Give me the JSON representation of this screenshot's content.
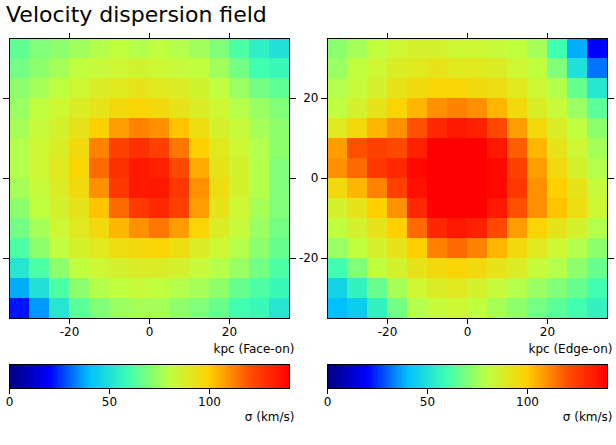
{
  "title": "Velocity dispersion field",
  "chart_data": [
    {
      "type": "heatmap",
      "xlabel": "kpc (Face-on)",
      "xlim": [
        -35,
        35
      ],
      "xticks": [
        -20,
        0,
        20
      ],
      "ylim": [
        -35,
        35
      ],
      "yticks": [
        -20,
        0,
        20
      ],
      "tick_labels": "x",
      "cells": [
        [
          65,
          70,
          72,
          75,
          78,
          80,
          78,
          80,
          78,
          75,
          70,
          62,
          55,
          50
        ],
        [
          68,
          72,
          76,
          80,
          82,
          84,
          85,
          84,
          82,
          80,
          75,
          68,
          60,
          58
        ],
        [
          72,
          76,
          80,
          84,
          88,
          90,
          92,
          90,
          88,
          85,
          80,
          74,
          68,
          65
        ],
        [
          74,
          80,
          84,
          88,
          92,
          96,
          98,
          96,
          92,
          88,
          84,
          78,
          74,
          70
        ],
        [
          76,
          82,
          86,
          92,
          100,
          108,
          112,
          110,
          102,
          94,
          86,
          82,
          76,
          72
        ],
        [
          78,
          84,
          88,
          96,
          112,
          124,
          128,
          124,
          114,
          100,
          90,
          84,
          78,
          72
        ],
        [
          78,
          84,
          90,
          98,
          116,
          128,
          134,
          132,
          122,
          106,
          92,
          86,
          78,
          70
        ],
        [
          76,
          82,
          88,
          96,
          110,
          126,
          134,
          134,
          126,
          110,
          94,
          86,
          78,
          70
        ],
        [
          72,
          80,
          86,
          92,
          102,
          116,
          126,
          130,
          124,
          108,
          92,
          84,
          76,
          70
        ],
        [
          68,
          76,
          84,
          90,
          96,
          104,
          110,
          114,
          108,
          98,
          88,
          82,
          74,
          68
        ],
        [
          62,
          72,
          80,
          86,
          90,
          94,
          96,
          98,
          94,
          88,
          84,
          78,
          72,
          66
        ],
        [
          52,
          62,
          72,
          80,
          84,
          86,
          88,
          88,
          86,
          82,
          78,
          74,
          68,
          62
        ],
        [
          38,
          50,
          62,
          72,
          78,
          80,
          82,
          80,
          78,
          76,
          72,
          66,
          62,
          58
        ],
        [
          22,
          36,
          52,
          64,
          70,
          74,
          76,
          76,
          72,
          70,
          66,
          60,
          58,
          52
        ]
      ],
      "colorbar": {
        "range": [
          0,
          140
        ],
        "ticks": [
          0,
          50,
          100
        ],
        "label": "σ (km/s)"
      }
    },
    {
      "type": "heatmap",
      "xlabel": "kpc (Edge-on)",
      "xlim": [
        -35,
        35
      ],
      "xticks": [
        -20,
        0,
        20
      ],
      "ylim": [
        -35,
        35
      ],
      "yticks": [
        -20,
        0,
        20
      ],
      "cells": [
        [
          72,
          76,
          80,
          84,
          86,
          86,
          84,
          84,
          82,
          80,
          76,
          60,
          38,
          20
        ],
        [
          74,
          80,
          84,
          88,
          90,
          92,
          90,
          90,
          88,
          84,
          80,
          70,
          50,
          32
        ],
        [
          78,
          82,
          86,
          92,
          96,
          98,
          98,
          96,
          94,
          90,
          84,
          78,
          66,
          52
        ],
        [
          80,
          86,
          92,
          98,
          104,
          110,
          112,
          110,
          104,
          96,
          88,
          82,
          74,
          64
        ],
        [
          90,
          96,
          104,
          110,
          120,
          130,
          134,
          132,
          122,
          108,
          96,
          88,
          80,
          72
        ],
        [
          108,
          120,
          124,
          122,
          132,
          140,
          140,
          140,
          134,
          118,
          104,
          92,
          84,
          76
        ],
        [
          110,
          116,
          126,
          130,
          138,
          140,
          140,
          140,
          138,
          124,
          108,
          96,
          86,
          78
        ],
        [
          96,
          104,
          112,
          124,
          136,
          140,
          140,
          140,
          138,
          126,
          110,
          100,
          92,
          82
        ],
        [
          86,
          92,
          100,
          110,
          130,
          140,
          140,
          140,
          134,
          120,
          110,
          102,
          94,
          84
        ],
        [
          80,
          86,
          92,
          100,
          116,
          130,
          134,
          132,
          122,
          108,
          98,
          92,
          86,
          78
        ],
        [
          74,
          80,
          86,
          92,
          100,
          112,
          116,
          112,
          104,
          96,
          90,
          84,
          78,
          72
        ],
        [
          60,
          70,
          80,
          86,
          92,
          96,
          98,
          96,
          92,
          88,
          82,
          78,
          72,
          66
        ],
        [
          46,
          56,
          66,
          76,
          84,
          88,
          90,
          86,
          82,
          78,
          74,
          70,
          66,
          60
        ],
        [
          40,
          44,
          56,
          68,
          78,
          82,
          84,
          80,
          76,
          72,
          68,
          64,
          60,
          56
        ]
      ],
      "colorbar": {
        "range": [
          0,
          140
        ],
        "ticks": [
          0,
          50,
          100
        ],
        "label": "σ (km/s)"
      }
    }
  ]
}
